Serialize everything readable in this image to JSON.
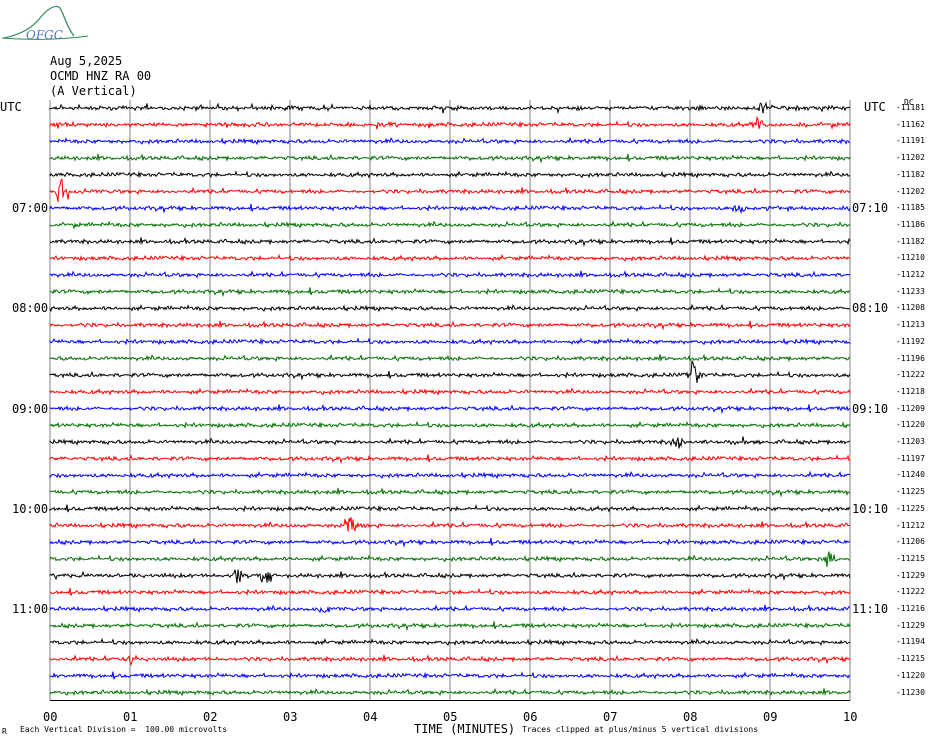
{
  "logo": {
    "text": "OFGC"
  },
  "header": {
    "date": "Aug 5,2025",
    "station": "OCMD HNZ RA 00",
    "component": "(A Vertical)"
  },
  "left_axis_label": "UTC",
  "right_axis_label": "UTC",
  "corner_mark": "DC",
  "bottom_corner_mark": "R",
  "footer": {
    "left": "Each Vertical Division =  100.00 microvolts",
    "right": "Traces clipped at plus/minus 5 vertical divisions"
  },
  "colors": {
    "cycle": [
      "#000000",
      "#ff0000",
      "#0000ff",
      "#007000"
    ],
    "grid": "#000000",
    "logo": "#2e8b57"
  },
  "chart_data": {
    "type": "line",
    "title": "",
    "xlabel": "TIME (MINUTES)",
    "ylabel": "",
    "xlim": [
      0,
      10
    ],
    "xticks": [
      "00",
      "01",
      "02",
      "03",
      "04",
      "05",
      "06",
      "07",
      "08",
      "09",
      "10"
    ],
    "trace_count": 36,
    "traces_per_hour": 6,
    "minutes_per_trace": 10,
    "left_hour_labels": [
      {
        "trace": 6,
        "label": "07:00"
      },
      {
        "trace": 12,
        "label": "08:00"
      },
      {
        "trace": 18,
        "label": "09:00"
      },
      {
        "trace": 24,
        "label": "10:00"
      },
      {
        "trace": 30,
        "label": "11:00"
      }
    ],
    "right_hour_labels": [
      {
        "trace": 6,
        "label": "07:10"
      },
      {
        "trace": 12,
        "label": "08:10"
      },
      {
        "trace": 18,
        "label": "09:10"
      },
      {
        "trace": 24,
        "label": "10:10"
      },
      {
        "trace": 30,
        "label": "11:10"
      }
    ],
    "trace_bias": [
      "-11181",
      "-11162",
      "-11191",
      "-11202",
      "-11182",
      "-11202",
      "-11185",
      "-11186",
      "-11182",
      "-11210",
      "-11212",
      "-11233",
      "-11208",
      "-11213",
      "-11192",
      "-11196",
      "-11222",
      "-11218",
      "-11209",
      "-11220",
      "-11203",
      "-11197",
      "-11240",
      "-11225",
      "-11225",
      "-11212",
      "-11206",
      "-11215",
      "-11229",
      "-11222",
      "-11216",
      "-11229",
      "-11194",
      "-11215",
      "-11220",
      "-11230"
    ],
    "events": [
      {
        "trace": 0,
        "minute": 8.9,
        "amp": 8
      },
      {
        "trace": 1,
        "minute": 8.85,
        "amp": 7
      },
      {
        "trace": 5,
        "minute": 0.15,
        "amp": 14
      },
      {
        "trace": 6,
        "minute": 8.6,
        "amp": 7
      },
      {
        "trace": 16,
        "minute": 8.05,
        "amp": 14
      },
      {
        "trace": 20,
        "minute": 7.85,
        "amp": 9
      },
      {
        "trace": 25,
        "minute": 3.75,
        "amp": 12
      },
      {
        "trace": 27,
        "minute": 9.75,
        "amp": 10
      },
      {
        "trace": 28,
        "minute": 2.7,
        "amp": 10
      },
      {
        "trace": 28,
        "minute": 2.35,
        "amp": 7
      },
      {
        "trace": 30,
        "minute": 3.4,
        "amp": 7
      },
      {
        "trace": 33,
        "minute": 1.0,
        "amp": 7
      }
    ]
  }
}
